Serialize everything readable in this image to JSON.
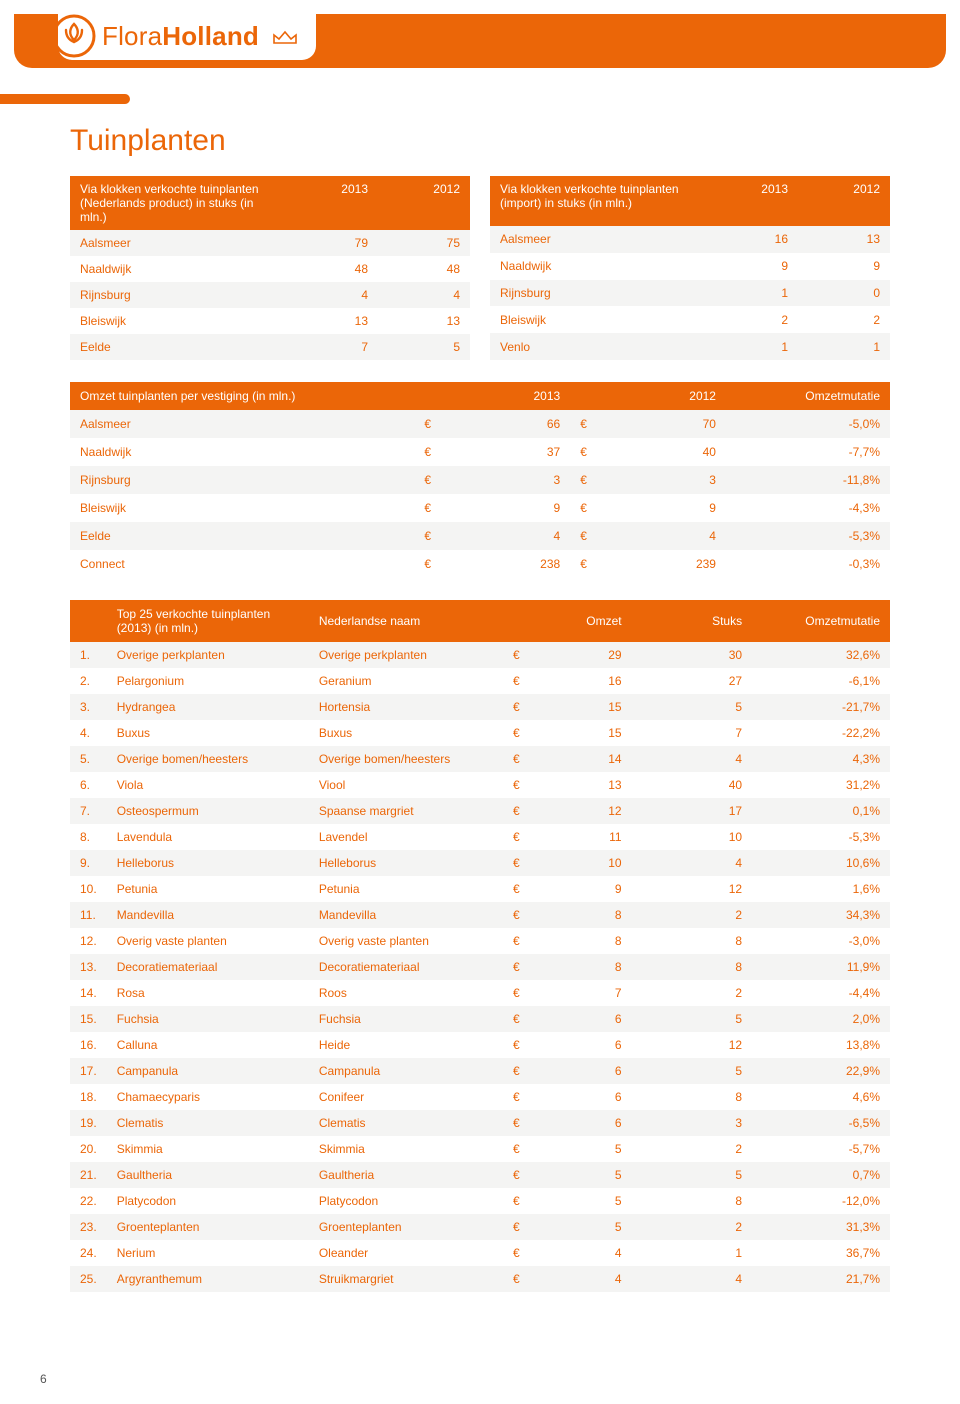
{
  "brand": {
    "name_light": "Flora",
    "name_bold": "Holland"
  },
  "colors": {
    "accent": "#eb6608",
    "row_odd": "#f4f4f3",
    "row_even": "#ffffff",
    "text": "#eb6608"
  },
  "page_title": "Tuinplanten",
  "page_number": "6",
  "tableA": {
    "header_label": "Via klokken verkochte tuinplanten (Nederlands product) in stuks (in mln.)",
    "col1": "2013",
    "col2": "2012",
    "rows": [
      {
        "label": "Aalsmeer",
        "v1": "79",
        "v2": "75"
      },
      {
        "label": "Naaldwijk",
        "v1": "48",
        "v2": "48"
      },
      {
        "label": "Rijnsburg",
        "v1": "4",
        "v2": "4"
      },
      {
        "label": "Bleiswijk",
        "v1": "13",
        "v2": "13"
      },
      {
        "label": "Eelde",
        "v1": "7",
        "v2": "5"
      }
    ]
  },
  "tableB": {
    "header_label": "Via klokken verkochte tuinplanten (import) in stuks (in mln.)",
    "col1": "2013",
    "col2": "2012",
    "rows": [
      {
        "label": "Aalsmeer",
        "v1": "16",
        "v2": "13"
      },
      {
        "label": "Naaldwijk",
        "v1": "9",
        "v2": "9"
      },
      {
        "label": "Rijnsburg",
        "v1": "1",
        "v2": "0"
      },
      {
        "label": "Bleiswijk",
        "v1": "2",
        "v2": "2"
      },
      {
        "label": "Venlo",
        "v1": "1",
        "v2": "1"
      }
    ]
  },
  "omzet": {
    "header_label": "Omzet tuinplanten per vestiging (in mln.)",
    "col1": "2013",
    "col2": "2012",
    "col3": "Omzetmutatie",
    "currency": "€",
    "rows": [
      {
        "label": "Aalsmeer",
        "v1": "66",
        "v2": "70",
        "mut": "-5,0%"
      },
      {
        "label": "Naaldwijk",
        "v1": "37",
        "v2": "40",
        "mut": "-7,7%"
      },
      {
        "label": "Rijnsburg",
        "v1": "3",
        "v2": "3",
        "mut": "-11,8%"
      },
      {
        "label": "Bleiswijk",
        "v1": "9",
        "v2": "9",
        "mut": "-4,3%"
      },
      {
        "label": "Eelde",
        "v1": "4",
        "v2": "4",
        "mut": "-5,3%"
      },
      {
        "label": "Connect",
        "v1": "238",
        "v2": "239",
        "mut": "-0,3%"
      }
    ]
  },
  "top25": {
    "header_label": "Top 25 verkochte tuinplanten (2013) (in mln.)",
    "col_nl": "Nederlandse naam",
    "col_omzet": "Omzet",
    "col_stuks": "Stuks",
    "col_mut": "Omzetmutatie",
    "currency": "€",
    "rows": [
      {
        "rank": "1.",
        "name": "Overige perkplanten",
        "nl": "Overige perkplanten",
        "omzet": "29",
        "stuks": "30",
        "mut": "32,6%"
      },
      {
        "rank": "2.",
        "name": "Pelargonium",
        "nl": "Geranium",
        "omzet": "16",
        "stuks": "27",
        "mut": "-6,1%"
      },
      {
        "rank": "3.",
        "name": "Hydrangea",
        "nl": "Hortensia",
        "omzet": "15",
        "stuks": "5",
        "mut": "-21,7%"
      },
      {
        "rank": "4.",
        "name": "Buxus",
        "nl": "Buxus",
        "omzet": "15",
        "stuks": "7",
        "mut": "-22,2%"
      },
      {
        "rank": "5.",
        "name": "Overige bomen/heesters",
        "nl": "Overige bomen/heesters",
        "omzet": "14",
        "stuks": "4",
        "mut": "4,3%"
      },
      {
        "rank": "6.",
        "name": "Viola",
        "nl": "Viool",
        "omzet": "13",
        "stuks": "40",
        "mut": "31,2%"
      },
      {
        "rank": "7.",
        "name": "Osteospermum",
        "nl": "Spaanse margriet",
        "omzet": "12",
        "stuks": "17",
        "mut": "0,1%"
      },
      {
        "rank": "8.",
        "name": "Lavendula",
        "nl": "Lavendel",
        "omzet": "11",
        "stuks": "10",
        "mut": "-5,3%"
      },
      {
        "rank": "9.",
        "name": "Helleborus",
        "nl": "Helleborus",
        "omzet": "10",
        "stuks": "4",
        "mut": "10,6%"
      },
      {
        "rank": "10.",
        "name": "Petunia",
        "nl": "Petunia",
        "omzet": "9",
        "stuks": "12",
        "mut": "1,6%"
      },
      {
        "rank": "11.",
        "name": "Mandevilla",
        "nl": "Mandevilla",
        "omzet": "8",
        "stuks": "2",
        "mut": "34,3%"
      },
      {
        "rank": "12.",
        "name": "Overig vaste planten",
        "nl": "Overig vaste planten",
        "omzet": "8",
        "stuks": "8",
        "mut": "-3,0%"
      },
      {
        "rank": "13.",
        "name": "Decoratiemateriaal",
        "nl": "Decoratiemateriaal",
        "omzet": "8",
        "stuks": "8",
        "mut": "11,9%"
      },
      {
        "rank": "14.",
        "name": "Rosa",
        "nl": "Roos",
        "omzet": "7",
        "stuks": "2",
        "mut": "-4,4%"
      },
      {
        "rank": "15.",
        "name": "Fuchsia",
        "nl": "Fuchsia",
        "omzet": "6",
        "stuks": "5",
        "mut": "2,0%"
      },
      {
        "rank": "16.",
        "name": "Calluna",
        "nl": "Heide",
        "omzet": "6",
        "stuks": "12",
        "mut": "13,8%"
      },
      {
        "rank": "17.",
        "name": "Campanula",
        "nl": "Campanula",
        "omzet": "6",
        "stuks": "5",
        "mut": "22,9%"
      },
      {
        "rank": "18.",
        "name": "Chamaecyparis",
        "nl": "Conifeer",
        "omzet": "6",
        "stuks": "8",
        "mut": "4,6%"
      },
      {
        "rank": "19.",
        "name": "Clematis",
        "nl": "Clematis",
        "omzet": "6",
        "stuks": "3",
        "mut": "-6,5%"
      },
      {
        "rank": "20.",
        "name": "Skimmia",
        "nl": "Skimmia",
        "omzet": "5",
        "stuks": "2",
        "mut": "-5,7%"
      },
      {
        "rank": "21.",
        "name": "Gaultheria",
        "nl": "Gaultheria",
        "omzet": "5",
        "stuks": "5",
        "mut": "0,7%"
      },
      {
        "rank": "22.",
        "name": "Platycodon",
        "nl": "Platycodon",
        "omzet": "5",
        "stuks": "8",
        "mut": "-12,0%"
      },
      {
        "rank": "23.",
        "name": "Groenteplanten",
        "nl": "Groenteplanten",
        "omzet": "5",
        "stuks": "2",
        "mut": "31,3%"
      },
      {
        "rank": "24.",
        "name": "Nerium",
        "nl": "Oleander",
        "omzet": "4",
        "stuks": "1",
        "mut": "36,7%"
      },
      {
        "rank": "25.",
        "name": "Argyranthemum",
        "nl": "Struikmargriet",
        "omzet": "4",
        "stuks": "4",
        "mut": "21,7%"
      }
    ]
  }
}
